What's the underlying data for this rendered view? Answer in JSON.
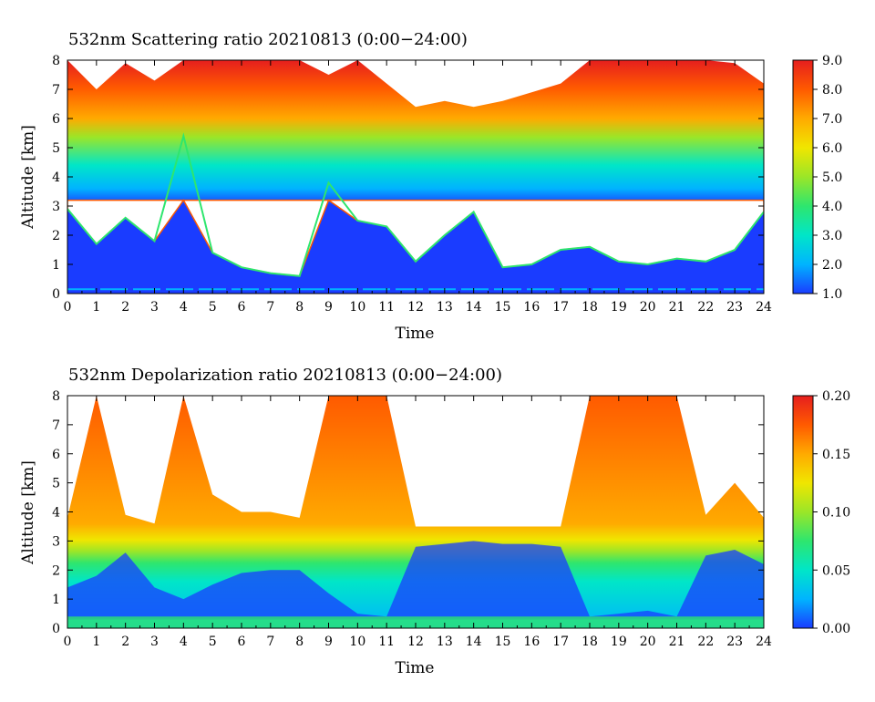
{
  "chart_data": [
    {
      "type": "heatmap",
      "title": "532nm Scattering ratio  20210813 (0:00−24:00)",
      "xlabel": "Time",
      "ylabel": "Altitude [km]",
      "xlim": [
        0,
        24
      ],
      "ylim": [
        0,
        8
      ],
      "x_ticks": [
        "0",
        "1",
        "2",
        "3",
        "4",
        "5",
        "6",
        "7",
        "8",
        "9",
        "10",
        "11",
        "12",
        "13",
        "14",
        "15",
        "16",
        "17",
        "18",
        "19",
        "20",
        "21",
        "22",
        "23",
        "24"
      ],
      "y_ticks": [
        "0",
        "1",
        "2",
        "3",
        "4",
        "5",
        "6",
        "7",
        "8"
      ],
      "colorbar": {
        "range": [
          1.0,
          9.0
        ],
        "ticks": [
          "1.0",
          "2.0",
          "3.0",
          "4.0",
          "5.0",
          "6.0",
          "7.0",
          "8.0",
          "9.0"
        ],
        "colors": [
          "#1a3cff",
          "#00b4ff",
          "#00e6c8",
          "#2ee66e",
          "#9be628",
          "#f0e600",
          "#ffaa00",
          "#ff5a00",
          "#e61e1e"
        ]
      },
      "time_hours": [
        0,
        1,
        2,
        3,
        4,
        5,
        6,
        7,
        8,
        9,
        10,
        11,
        12,
        13,
        14,
        15,
        16,
        17,
        18,
        19,
        20,
        21,
        22,
        23,
        24
      ],
      "cloud_top_km": [
        2.9,
        1.7,
        2.6,
        1.8,
        5.4,
        1.4,
        0.9,
        0.7,
        0.6,
        3.8,
        2.5,
        2.3,
        1.1,
        2.0,
        2.8,
        0.9,
        1.0,
        1.5,
        1.6,
        1.1,
        1.0,
        1.2,
        1.1,
        1.5,
        2.8
      ],
      "signal_top_km": [
        8.0,
        7.0,
        7.9,
        7.3,
        8.0,
        8.0,
        8.0,
        8.0,
        8.0,
        7.5,
        8.0,
        7.2,
        6.4,
        6.6,
        6.4,
        6.6,
        6.9,
        7.2,
        8.0,
        8.0,
        8.0,
        8.0,
        8.0,
        7.9,
        7.2
      ],
      "clear_top_km": 3.2
    },
    {
      "type": "heatmap",
      "title": "532nm Depolarization ratio  20210813 (0:00−24:00)",
      "xlabel": "Time",
      "ylabel": "Altitude [km]",
      "xlim": [
        0,
        24
      ],
      "ylim": [
        0,
        8
      ],
      "x_ticks": [
        "0",
        "1",
        "2",
        "3",
        "4",
        "5",
        "6",
        "7",
        "8",
        "9",
        "10",
        "11",
        "12",
        "13",
        "14",
        "15",
        "16",
        "17",
        "18",
        "19",
        "20",
        "21",
        "22",
        "23",
        "24"
      ],
      "y_ticks": [
        "0",
        "1",
        "2",
        "3",
        "4",
        "5",
        "6",
        "7",
        "8"
      ],
      "colorbar": {
        "range": [
          0.0,
          0.2
        ],
        "ticks": [
          "0.00",
          "0.05",
          "0.10",
          "0.15",
          "0.20"
        ],
        "colors": [
          "#1a3cff",
          "#00b4ff",
          "#00e6c8",
          "#2ee66e",
          "#9be628",
          "#f0e600",
          "#ffaa00",
          "#ff5a00",
          "#e61e1e"
        ]
      },
      "time_hours": [
        0,
        1,
        2,
        3,
        4,
        5,
        6,
        7,
        8,
        9,
        10,
        11,
        12,
        13,
        14,
        15,
        16,
        17,
        18,
        19,
        20,
        21,
        22,
        23,
        24
      ],
      "signal_top_km": [
        3.8,
        8.0,
        3.9,
        3.6,
        8.0,
        4.6,
        4.0,
        4.0,
        3.8,
        8.0,
        8.0,
        8.0,
        3.5,
        3.5,
        3.5,
        3.5,
        3.5,
        3.5,
        8.0,
        8.0,
        8.0,
        8.0,
        3.9,
        5.0,
        3.8
      ],
      "low_depol_top_km": [
        1.4,
        1.8,
        2.6,
        1.4,
        1.0,
        1.5,
        1.9,
        2.0,
        2.0,
        1.2,
        0.5,
        0.4,
        2.8,
        2.9,
        3.0,
        2.9,
        2.9,
        2.8,
        0.4,
        0.5,
        0.6,
        0.4,
        2.5,
        2.7,
        2.2
      ]
    }
  ]
}
